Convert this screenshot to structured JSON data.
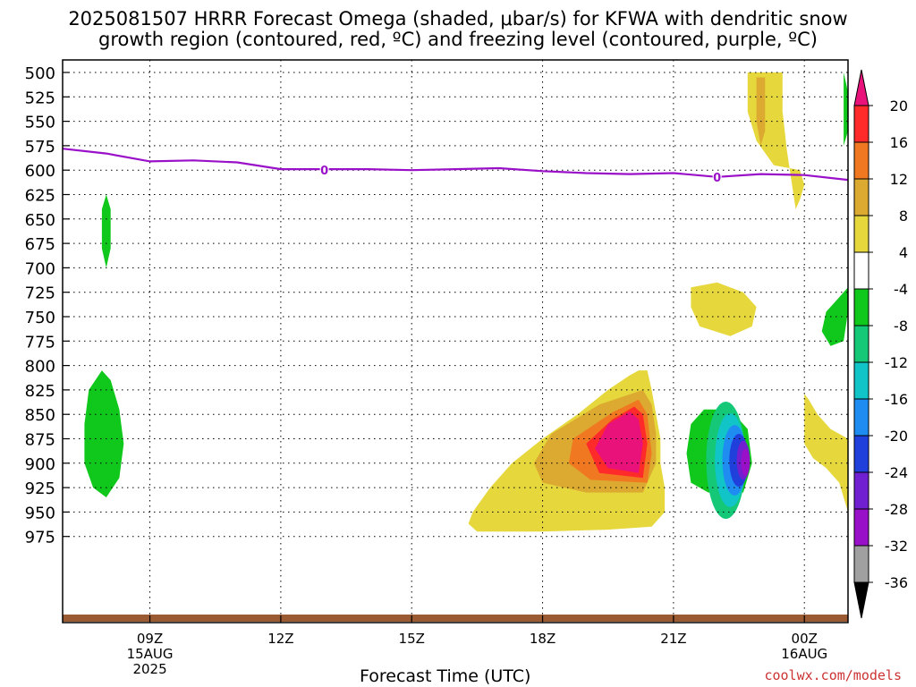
{
  "header": {
    "title_line1": "2025081507 HRRR Forecast Omega (shaded, μbar/s) for KFWA with dendritic snow",
    "title_line2": "growth region (contoured, red, ºC) and freezing level (contoured, purple, ºC)"
  },
  "credit": "coolwx.com/models",
  "chart_data": {
    "type": "contour",
    "title": "2025081507 HRRR Forecast Omega (shaded, μbar/s) for KFWA with dendritic snow growth region (contoured, red, ºC) and freezing level (contoured, purple, ºC)",
    "xlabel": "Forecast Time (UTC)",
    "ylabel": "",
    "y_axis": {
      "unit": "hPa",
      "inverted": true,
      "range": [
        500,
        1000
      ],
      "ticks": [
        500,
        525,
        550,
        575,
        600,
        625,
        650,
        675,
        700,
        725,
        750,
        775,
        800,
        825,
        850,
        875,
        900,
        925,
        950,
        975
      ]
    },
    "x_axis": {
      "range_hours": [
        7,
        25
      ],
      "ticks": [
        {
          "hour": 9,
          "label": "09Z",
          "sub1": "15AUG",
          "sub2": "2025"
        },
        {
          "hour": 12,
          "label": "12Z",
          "sub1": "",
          "sub2": ""
        },
        {
          "hour": 15,
          "label": "15Z",
          "sub1": "",
          "sub2": ""
        },
        {
          "hour": 18,
          "label": "18Z",
          "sub1": "",
          "sub2": ""
        },
        {
          "hour": 21,
          "label": "21Z",
          "sub1": "",
          "sub2": ""
        },
        {
          "hour": 24,
          "label": "00Z",
          "sub1": "16AUG",
          "sub2": ""
        }
      ]
    },
    "grid": true,
    "colorbar": {
      "placement": "right",
      "levels": [
        20,
        16,
        12,
        8,
        4,
        -4,
        -8,
        -12,
        -16,
        -20,
        -24,
        -28,
        -32,
        -36
      ],
      "colors": [
        "#e8127a",
        "#ff2a2a",
        "#f07820",
        "#dcaa30",
        "#e6d83c",
        "#ffffff",
        "#10c81c",
        "#14c878",
        "#10c4c8",
        "#1e8cf0",
        "#2040dc",
        "#7020d0",
        "#9810c8",
        "#a0a0a0",
        "#000000"
      ]
    },
    "freezing_level": {
      "label": "0",
      "label_positions": [
        {
          "hour": 13.0,
          "hpa": 600
        },
        {
          "hour": 22.0,
          "hpa": 607
        }
      ],
      "points": [
        {
          "hour": 7.0,
          "hpa": 578
        },
        {
          "hour": 8.0,
          "hpa": 583
        },
        {
          "hour": 9.0,
          "hpa": 591
        },
        {
          "hour": 10.0,
          "hpa": 590
        },
        {
          "hour": 11.0,
          "hpa": 592
        },
        {
          "hour": 12.0,
          "hpa": 599
        },
        {
          "hour": 13.0,
          "hpa": 599
        },
        {
          "hour": 14.0,
          "hpa": 599
        },
        {
          "hour": 15.0,
          "hpa": 600
        },
        {
          "hour": 16.0,
          "hpa": 599
        },
        {
          "hour": 17.0,
          "hpa": 598
        },
        {
          "hour": 18.0,
          "hpa": 601
        },
        {
          "hour": 19.0,
          "hpa": 603
        },
        {
          "hour": 20.0,
          "hpa": 604
        },
        {
          "hour": 21.0,
          "hpa": 603
        },
        {
          "hour": 22.0,
          "hpa": 607
        },
        {
          "hour": 23.0,
          "hpa": 604
        },
        {
          "hour": 24.0,
          "hpa": 605
        },
        {
          "hour": 25.0,
          "hpa": 610
        }
      ]
    },
    "series": [
      {
        "value": 4,
        "points": [
          [
            20.2,
            555
          ],
          [
            20.0,
            560
          ],
          [
            19.5,
            575
          ],
          [
            18.8,
            600
          ],
          [
            18.0,
            625
          ],
          [
            17.3,
            650
          ],
          [
            16.8,
            675
          ],
          [
            16.4,
            700
          ],
          [
            16.3,
            712
          ],
          [
            16.5,
            720
          ],
          [
            18.0,
            720
          ],
          [
            19.5,
            718
          ],
          [
            20.5,
            715
          ],
          [
            20.8,
            700
          ],
          [
            20.8,
            675
          ],
          [
            20.7,
            650
          ],
          [
            20.7,
            625
          ],
          [
            20.6,
            600
          ],
          [
            20.5,
            575
          ],
          [
            20.4,
            555
          ]
        ]
      },
      {
        "value": 8,
        "points": [
          [
            20.3,
            575
          ],
          [
            19.3,
            590
          ],
          [
            18.2,
            620
          ],
          [
            17.8,
            650
          ],
          [
            18.0,
            670
          ],
          [
            19.0,
            680
          ],
          [
            20.3,
            680
          ],
          [
            20.6,
            650
          ],
          [
            20.6,
            620
          ],
          [
            20.5,
            590
          ]
        ]
      },
      {
        "value": 12,
        "points": [
          [
            20.2,
            585
          ],
          [
            19.6,
            598
          ],
          [
            18.7,
            625
          ],
          [
            18.6,
            650
          ],
          [
            19.1,
            667
          ],
          [
            20.4,
            670
          ],
          [
            20.5,
            640
          ],
          [
            20.4,
            600
          ]
        ]
      },
      {
        "value": 16,
        "points": [
          [
            20.1,
            592
          ],
          [
            19.6,
            605
          ],
          [
            19.0,
            630
          ],
          [
            19.3,
            660
          ],
          [
            20.3,
            665
          ],
          [
            20.4,
            630
          ],
          [
            20.3,
            600
          ]
        ]
      },
      {
        "value": 20,
        "points": [
          [
            20.0,
            597
          ],
          [
            19.5,
            610
          ],
          [
            19.2,
            635
          ],
          [
            19.5,
            655
          ],
          [
            20.2,
            660
          ],
          [
            20.3,
            630
          ],
          [
            20.2,
            605
          ]
        ]
      },
      {
        "value": -4,
        "points": [
          [
            21.7,
            595
          ],
          [
            21.4,
            610
          ],
          [
            21.3,
            640
          ],
          [
            21.4,
            670
          ],
          [
            21.8,
            680
          ],
          [
            22.6,
            680
          ],
          [
            22.8,
            650
          ],
          [
            22.7,
            615
          ],
          [
            22.3,
            595
          ]
        ]
      },
      {
        "value": 4,
        "points": [
          [
            21.4,
            720
          ],
          [
            21.4,
            740
          ],
          [
            21.6,
            760
          ],
          [
            22.3,
            770
          ],
          [
            22.8,
            760
          ],
          [
            22.9,
            740
          ],
          [
            22.6,
            725
          ],
          [
            22.0,
            715
          ]
        ]
      },
      {
        "value": 4,
        "points": [
          [
            22.7,
            500
          ],
          [
            22.7,
            540
          ],
          [
            22.9,
            570
          ],
          [
            23.3,
            595
          ],
          [
            23.9,
            600
          ],
          [
            24.0,
            615
          ],
          [
            23.9,
            630
          ],
          [
            23.8,
            640
          ],
          [
            23.6,
            580
          ],
          [
            23.5,
            540
          ],
          [
            23.5,
            500
          ]
        ]
      },
      {
        "value": 8,
        "points": [
          [
            22.9,
            505
          ],
          [
            22.9,
            550
          ],
          [
            23.0,
            575
          ],
          [
            23.1,
            560
          ],
          [
            23.1,
            505
          ]
        ]
      },
      {
        "value": -4,
        "points": [
          [
            24.9,
            500
          ],
          [
            25.0,
            520
          ],
          [
            25.0,
            560
          ],
          [
            24.9,
            575
          ]
        ]
      },
      {
        "value": -4,
        "points": [
          [
            24.7,
            735
          ],
          [
            24.5,
            745
          ],
          [
            24.4,
            765
          ],
          [
            24.6,
            780
          ],
          [
            24.9,
            775
          ],
          [
            25.0,
            745
          ],
          [
            25.0,
            720
          ]
        ]
      },
      {
        "value": 4,
        "points": [
          [
            24.0,
            829
          ],
          [
            24.0,
            880
          ],
          [
            24.2,
            895
          ],
          [
            24.5,
            905
          ],
          [
            24.8,
            920
          ],
          [
            25.0,
            950
          ],
          [
            25.0,
            875
          ],
          [
            24.6,
            865
          ],
          [
            24.3,
            850
          ],
          [
            24.1,
            835
          ]
        ]
      },
      {
        "value": -4,
        "points": [
          [
            8.0,
            625
          ],
          [
            7.9,
            640
          ],
          [
            7.9,
            680
          ],
          [
            8.0,
            700
          ],
          [
            8.1,
            680
          ],
          [
            8.1,
            640
          ]
        ]
      },
      {
        "value": -4,
        "points": [
          [
            7.9,
            805
          ],
          [
            7.6,
            825
          ],
          [
            7.5,
            860
          ],
          [
            7.5,
            900
          ],
          [
            7.7,
            925
          ],
          [
            8.0,
            935
          ],
          [
            8.3,
            915
          ],
          [
            8.4,
            880
          ],
          [
            8.3,
            845
          ],
          [
            8.1,
            815
          ]
        ]
      }
    ]
  }
}
